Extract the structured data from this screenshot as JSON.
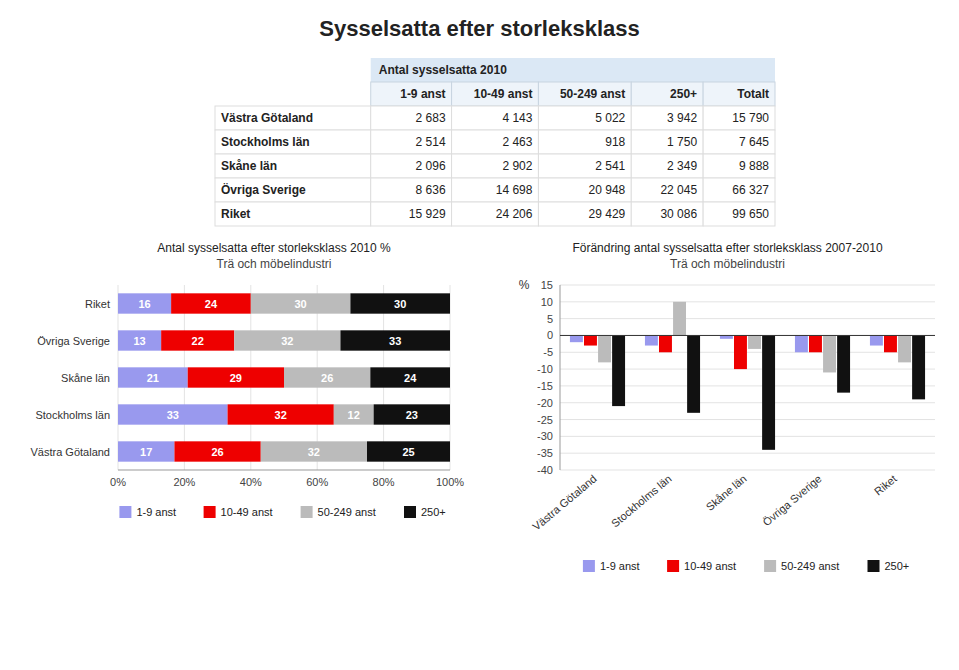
{
  "title": "Sysselsatta efter storleksklass",
  "chart_data": [
    {
      "type": "table",
      "title": "Antal sysselsatta 2010",
      "data_labels": true,
      "categories": [
        "Västra Götaland",
        "Stockholms län",
        "Skåne län",
        "Övriga Sverige",
        "Riket"
      ],
      "series": [
        {
          "name": "1-9 anst",
          "values": [
            2683,
            2514,
            2096,
            8636,
            15929
          ],
          "value_labels": [
            "2 683",
            "2 514",
            "2 096",
            "8 636",
            "15 929"
          ]
        },
        {
          "name": "10-49 anst",
          "values": [
            4143,
            2463,
            2902,
            14698,
            24206
          ],
          "value_labels": [
            "4 143",
            "2 463",
            "2 902",
            "14 698",
            "24 206"
          ]
        },
        {
          "name": "50-249 anst",
          "values": [
            5022,
            918,
            2541,
            20948,
            29429
          ],
          "value_labels": [
            "5 022",
            "918",
            "2 541",
            "20 948",
            "29 429"
          ]
        },
        {
          "name": "250+",
          "values": [
            3942,
            1750,
            2349,
            22045,
            30086
          ],
          "value_labels": [
            "3 942",
            "1 750",
            "2 349",
            "22 045",
            "30 086"
          ]
        },
        {
          "name": "Totalt",
          "values": [
            15790,
            7645,
            9888,
            66327,
            99650
          ],
          "value_labels": [
            "15 790",
            "7 645",
            "9 888",
            "66 327",
            "99 650"
          ]
        }
      ]
    },
    {
      "type": "bar",
      "orientation": "horizontal",
      "stacked": true,
      "data_labels": true,
      "grid": true,
      "legend": "bottom",
      "title": "Antal sysselsatta efter storleksklass 2010 %",
      "subtitle": "Trä och möbelindustri",
      "categories": [
        "Västra Götaland",
        "Stockholms län",
        "Skåne län",
        "Övriga Sverige",
        "Riket"
      ],
      "series": [
        {
          "name": "1-9 anst",
          "color": "#9999EE",
          "values": [
            17,
            33,
            21,
            13,
            16
          ]
        },
        {
          "name": "10-49 anst",
          "color": "#EE0000",
          "values": [
            26,
            32,
            29,
            22,
            24
          ]
        },
        {
          "name": "50-249 anst",
          "color": "#BBBBBB",
          "values": [
            32,
            12,
            26,
            32,
            30
          ]
        },
        {
          "name": "250+",
          "color": "#111111",
          "values": [
            25,
            23,
            24,
            33,
            30
          ]
        }
      ],
      "xlim": [
        0,
        100
      ],
      "xticks": [
        {
          "value": 0,
          "label": "0%"
        },
        {
          "value": 20,
          "label": "20%"
        },
        {
          "value": 40,
          "label": "40%"
        },
        {
          "value": 60,
          "label": "60%"
        },
        {
          "value": 80,
          "label": "80%"
        },
        {
          "value": 100,
          "label": "100%"
        }
      ]
    },
    {
      "type": "bar",
      "grid": true,
      "legend": "bottom",
      "title": "Förändring antal sysselsatta efter storleksklass 2007-2010",
      "subtitle": "Trä och möbelindustri",
      "ylabel": "%",
      "categories": [
        "Västra Götaland",
        "Stockholms län",
        "Skåne län",
        "Övriga Sverige",
        "Riket"
      ],
      "series": [
        {
          "name": "1-9 anst",
          "color": "#9999EE",
          "values": [
            -2,
            -3,
            -1,
            -5,
            -3
          ]
        },
        {
          "name": "10-49 anst",
          "color": "#EE0000",
          "values": [
            -3,
            -5,
            -10,
            -5,
            -5
          ]
        },
        {
          "name": "50-249 anst",
          "color": "#BBBBBB",
          "values": [
            -8,
            10,
            -4,
            -11,
            -8
          ]
        },
        {
          "name": "250+",
          "color": "#111111",
          "values": [
            -21,
            -23,
            -34,
            -17,
            -19
          ]
        }
      ],
      "ylim": [
        -40,
        15
      ],
      "yticks": [
        15,
        10,
        5,
        0,
        -5,
        -10,
        -15,
        -20,
        -25,
        -30,
        -35,
        -40
      ]
    }
  ]
}
